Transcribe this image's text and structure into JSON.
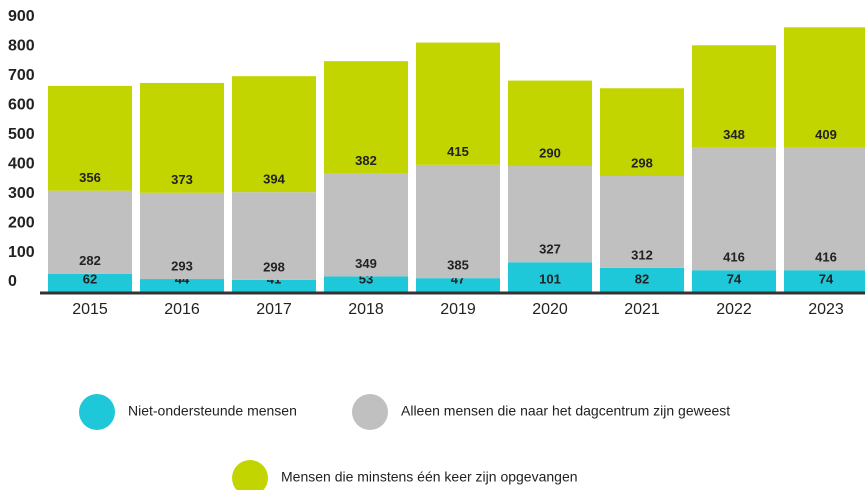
{
  "chart_data": {
    "type": "stacked_bar",
    "categories": [
      "2015",
      "2016",
      "2017",
      "2018",
      "2019",
      "2020",
      "2021",
      "2022",
      "2023"
    ],
    "series": [
      {
        "name": "Niet-ondersteunde mensen",
        "color": "#1ec8d8",
        "values": [
          62,
          44,
          41,
          53,
          47,
          101,
          82,
          74,
          74
        ]
      },
      {
        "name": "Alleen mensen die naar het dagcentrum zijn geweest",
        "color": "#c0c0c0",
        "values": [
          282,
          293,
          298,
          349,
          385,
          327,
          312,
          416,
          416
        ]
      },
      {
        "name": "Mensen die minstens één keer zijn opgevangen",
        "color": "#c3d500",
        "values": [
          356,
          373,
          394,
          382,
          415,
          290,
          298,
          348,
          409
        ]
      }
    ],
    "ylim": [
      0,
      900
    ],
    "yticks": [
      0,
      100,
      200,
      300,
      400,
      500,
      600,
      700,
      800,
      900
    ],
    "grid": false
  }
}
